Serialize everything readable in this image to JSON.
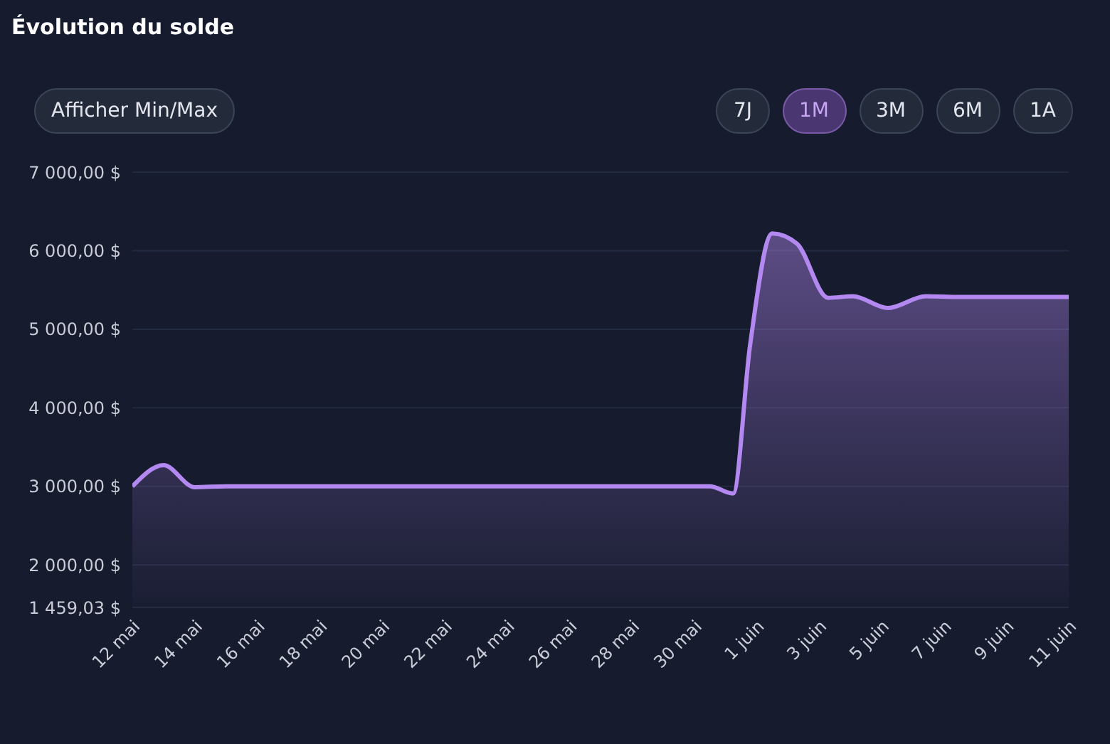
{
  "chart_data": {
    "type": "area",
    "title": "Évolution du solde",
    "annotations": [
      "Afficher Min/Max",
      "7J",
      "1M",
      "3M",
      "6M",
      "1A"
    ],
    "x": [
      "--05-12T00:00",
      "--05-13T00:00",
      "--05-14T00:00",
      "--05-15T00:00",
      "--05-30T12:00",
      "--05-31T06:00",
      "--05-31T19:00",
      "--06-01T12:00",
      "--06-02T07:00",
      "--06-03T07:00",
      "--06-04T02:00",
      "--06-05T05:00",
      "--06-06T10:00",
      "--06-07T12:00",
      "--06-11T00:00"
    ],
    "series": [
      {
        "color": "#b388f0",
        "values": [
          3000,
          3270,
          2990,
          3000,
          3000,
          2910,
          4800,
          6220,
          6090,
          5400,
          5420,
          5270,
          5420,
          5410,
          5410
        ]
      }
    ],
    "xlim": [
      "--05-12",
      "--06-11"
    ],
    "xticks": [
      {
        "value": "--05-12",
        "label": "12 mai"
      },
      {
        "value": "--05-14",
        "label": "14 mai"
      },
      {
        "value": "--05-16",
        "label": "16 mai"
      },
      {
        "value": "--05-18",
        "label": "18 mai"
      },
      {
        "value": "--05-20",
        "label": "20 mai"
      },
      {
        "value": "--05-22",
        "label": "22 mai"
      },
      {
        "value": "--05-24",
        "label": "24 mai"
      },
      {
        "value": "--05-26",
        "label": "26 mai"
      },
      {
        "value": "--05-28",
        "label": "28 mai"
      },
      {
        "value": "--05-30",
        "label": "30 mai"
      },
      {
        "value": "--06-01",
        "label": "1 juin"
      },
      {
        "value": "--06-03",
        "label": "3 juin"
      },
      {
        "value": "--06-05",
        "label": "5 juin"
      },
      {
        "value": "--06-07",
        "label": "7 juin"
      },
      {
        "value": "--06-09",
        "label": "9 juin"
      },
      {
        "value": "--06-11",
        "label": "11 juin"
      }
    ],
    "ylim": [
      1459.03,
      7000
    ],
    "yticks": [
      {
        "value": 1459.03,
        "label": "1 459,03 $"
      },
      {
        "value": 2000,
        "label": "2 000,00 $"
      },
      {
        "value": 3000,
        "label": "3 000,00 $"
      },
      {
        "value": 4000,
        "label": "4 000,00 $"
      },
      {
        "value": 5000,
        "label": "5 000,00 $"
      },
      {
        "value": 6000,
        "label": "6 000,00 $"
      },
      {
        "value": 7000,
        "label": "7 000,00 $"
      }
    ],
    "grid": "y",
    "legend": false
  }
}
